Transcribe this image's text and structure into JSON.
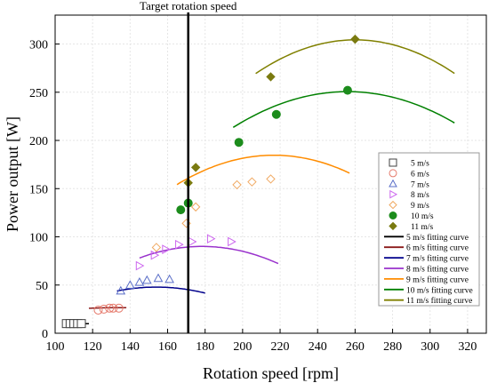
{
  "chart_data": {
    "type": "scatter",
    "title": "",
    "xlabel": "Rotation speed [rpm]",
    "ylabel": "Power output [W]",
    "xlim": [
      100,
      330
    ],
    "ylim": [
      0,
      330
    ],
    "xticks": [
      100,
      120,
      140,
      160,
      180,
      200,
      220,
      240,
      260,
      280,
      300,
      320
    ],
    "yticks": [
      0,
      50,
      100,
      150,
      200,
      250,
      300
    ],
    "grid": true,
    "legend_position": "right",
    "annotation": {
      "label": "Target rotation speed",
      "x": 171
    },
    "series": [
      {
        "name": "5 m/s",
        "marker": "square",
        "color": "#404040",
        "points": [
          [
            106,
            10
          ],
          [
            108,
            10
          ],
          [
            110,
            10
          ],
          [
            112,
            10
          ],
          [
            114,
            10
          ]
        ]
      },
      {
        "name": "6 m/s",
        "marker": "circle-open",
        "color": "#e5796b",
        "points": [
          [
            123,
            24
          ],
          [
            126,
            25
          ],
          [
            129,
            26
          ],
          [
            131,
            26
          ],
          [
            134,
            26
          ]
        ]
      },
      {
        "name": "7 m/s",
        "marker": "triangle-up-open",
        "color": "#5b6fc8",
        "points": [
          [
            135,
            44
          ],
          [
            140,
            50
          ],
          [
            145,
            53
          ],
          [
            149,
            55
          ],
          [
            155,
            57
          ],
          [
            161,
            56
          ]
        ]
      },
      {
        "name": "8 m/s",
        "marker": "triangle-right-open",
        "color": "#cc66ee",
        "points": [
          [
            145,
            70
          ],
          [
            153,
            81
          ],
          [
            159,
            87
          ],
          [
            166,
            92
          ],
          [
            173,
            95
          ],
          [
            183,
            98
          ],
          [
            194,
            95
          ]
        ]
      },
      {
        "name": "9 m/s",
        "marker": "diamond-open",
        "color": "#f0a860",
        "points": [
          [
            154,
            89
          ],
          [
            170,
            114
          ],
          [
            175,
            131
          ],
          [
            197,
            154
          ],
          [
            205,
            157
          ],
          [
            215,
            160
          ]
        ]
      },
      {
        "name": "10 m/s",
        "marker": "circle-filled",
        "color": "#1c8c1c",
        "points": [
          [
            167,
            128
          ],
          [
            171,
            135
          ],
          [
            198,
            198
          ],
          [
            218,
            227
          ],
          [
            256,
            252
          ]
        ]
      },
      {
        "name": "11 m/s",
        "marker": "diamond-filled",
        "color": "#7a7a10",
        "points": [
          [
            171,
            156
          ],
          [
            175,
            172
          ],
          [
            215,
            266
          ],
          [
            260,
            305
          ]
        ]
      }
    ],
    "fitting_curves": [
      {
        "name": "5 m/s fitting curve",
        "color": "#000000",
        "x_range": [
          104,
          118
        ],
        "coeffs": [
          10,
          0,
          0
        ]
      },
      {
        "name": "6 m/s fitting curve",
        "color": "#8b1a1a",
        "x_range": [
          118,
          138
        ],
        "coeffs": [
          -26.8,
          0.8,
          -0.003
        ]
      },
      {
        "name": "7 m/s fitting curve",
        "color": "#00008b",
        "x_range": [
          133,
          180
        ],
        "coeffs": [
          -170,
          2.83,
          -0.00919
        ]
      },
      {
        "name": "8 m/s fitting curve",
        "color": "#9932cc",
        "x_range": [
          145,
          219
        ],
        "coeffs": [
          -252.2,
          3.838,
          -0.01076
        ]
      },
      {
        "name": "9 m/s fitting curve",
        "color": "#ff8c00",
        "x_range": [
          165,
          257
        ],
        "coeffs": [
          -350.5,
          4.94,
          -0.0114
        ]
      },
      {
        "name": "10 m/s fitting curve",
        "color": "#008000",
        "x_range": [
          195,
          313
        ],
        "coeffs": [
          -402.6,
          5.104,
          -0.00997
        ]
      },
      {
        "name": "11 m/s fitting curve",
        "color": "#808000",
        "x_range": [
          207,
          313
        ],
        "coeffs": [
          -535.7,
          6.46,
          -0.01242
        ]
      }
    ]
  }
}
